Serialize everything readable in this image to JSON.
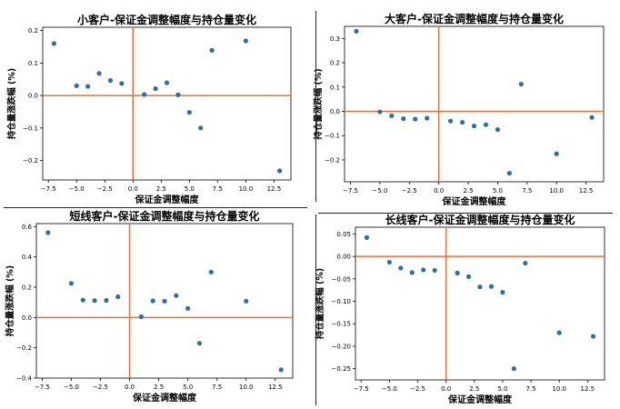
{
  "colors": {
    "point": "#2e6ea0",
    "refline": "#e0743a",
    "axis": "#000000",
    "divider": "#222222"
  },
  "chart_data": [
    {
      "type": "scatter",
      "title": "小客户-保证金调整幅度与持仓量变化",
      "xlabel": "保证金调整幅度",
      "ylabel": "持仓量涨跌幅 (%)",
      "xlim": [
        -8.0,
        14.0
      ],
      "ylim": [
        -0.26,
        0.21
      ],
      "xticks": [
        -7.5,
        -5.0,
        -2.5,
        0.0,
        2.5,
        5.0,
        7.5,
        10.0,
        12.5
      ],
      "xtick_labels": [
        "−7.5",
        "−5.0",
        "−2.5",
        "0.0",
        "2.5",
        "5.0",
        "7.5",
        "10.0",
        "12.5"
      ],
      "yticks": [
        -0.2,
        -0.1,
        0.0,
        0.1,
        0.2
      ],
      "ytick_labels": [
        "−0.2",
        "−0.1",
        "0.0",
        "0.1",
        "0.2"
      ],
      "reference_lines": {
        "x": 0,
        "y": 0
      },
      "grid": false,
      "points": [
        {
          "x": -7.0,
          "y": 0.16
        },
        {
          "x": -5.0,
          "y": 0.03
        },
        {
          "x": -4.0,
          "y": 0.028
        },
        {
          "x": -3.0,
          "y": 0.068
        },
        {
          "x": -2.0,
          "y": 0.046
        },
        {
          "x": -1.0,
          "y": 0.037
        },
        {
          "x": 1.0,
          "y": 0.003
        },
        {
          "x": 2.0,
          "y": 0.021
        },
        {
          "x": 3.0,
          "y": 0.039
        },
        {
          "x": 4.0,
          "y": 0.002
        },
        {
          "x": 5.0,
          "y": -0.052
        },
        {
          "x": 6.0,
          "y": -0.1
        },
        {
          "x": 7.0,
          "y": 0.139
        },
        {
          "x": 10.0,
          "y": 0.168
        },
        {
          "x": 13.0,
          "y": -0.232
        }
      ]
    },
    {
      "type": "scatter",
      "title": "大客户-保证金调整幅度与持仓量变化",
      "xlabel": "保证金调整幅度",
      "ylabel": "持仓量涨跌幅 (%)",
      "xlim": [
        -8.0,
        14.0
      ],
      "ylim": [
        -0.29,
        0.35
      ],
      "xticks": [
        -7.5,
        -5.0,
        -2.5,
        0.0,
        2.5,
        5.0,
        7.5,
        10.0,
        12.5
      ],
      "xtick_labels": [
        "−7.5",
        "−5.0",
        "−2.5",
        "0.0",
        "2.5",
        "5.0",
        "7.5",
        "10.0",
        "12.5"
      ],
      "yticks": [
        -0.2,
        -0.1,
        0.0,
        0.1,
        0.2,
        0.3
      ],
      "ytick_labels": [
        "−0.2",
        "−0.1",
        "0.0",
        "0.1",
        "0.2",
        "0.3"
      ],
      "reference_lines": {
        "x": 0,
        "y": 0
      },
      "grid": false,
      "points": [
        {
          "x": -7.0,
          "y": 0.33
        },
        {
          "x": -5.0,
          "y": -0.002
        },
        {
          "x": -4.0,
          "y": -0.018
        },
        {
          "x": -3.0,
          "y": -0.03
        },
        {
          "x": -2.0,
          "y": -0.032
        },
        {
          "x": -1.0,
          "y": -0.028
        },
        {
          "x": 1.0,
          "y": -0.04
        },
        {
          "x": 2.0,
          "y": -0.045
        },
        {
          "x": 3.0,
          "y": -0.06
        },
        {
          "x": 4.0,
          "y": -0.055
        },
        {
          "x": 5.0,
          "y": -0.075
        },
        {
          "x": 6.0,
          "y": -0.255
        },
        {
          "x": 7.0,
          "y": 0.112
        },
        {
          "x": 10.0,
          "y": -0.175
        },
        {
          "x": 13.0,
          "y": -0.025
        }
      ]
    },
    {
      "type": "scatter",
      "title": "短线客户-保证金调整幅度与持仓量变化",
      "xlabel": "保证金调整幅度",
      "ylabel": "持仓量涨跌幅 (%)",
      "xlim": [
        -8.0,
        14.0
      ],
      "ylim": [
        -0.4,
        0.62
      ],
      "xticks": [
        -7.5,
        -5.0,
        -2.5,
        0.0,
        2.5,
        5.0,
        7.5,
        10.0,
        12.5
      ],
      "xtick_labels": [
        "−7.5",
        "−5.0",
        "−2.5",
        "0.0",
        "2.5",
        "5.0",
        "7.5",
        "10.0",
        "12.5"
      ],
      "yticks": [
        -0.4,
        -0.2,
        0.0,
        0.2,
        0.4,
        0.6
      ],
      "ytick_labels": [
        "−0.4",
        "−0.2",
        "0.0",
        "0.2",
        "0.4",
        "0.6"
      ],
      "reference_lines": {
        "x": 0,
        "y": 0
      },
      "grid": false,
      "points": [
        {
          "x": -7.0,
          "y": 0.56
        },
        {
          "x": -5.0,
          "y": 0.225
        },
        {
          "x": -4.0,
          "y": 0.115
        },
        {
          "x": -3.0,
          "y": 0.112
        },
        {
          "x": -2.0,
          "y": 0.113
        },
        {
          "x": -1.0,
          "y": 0.137
        },
        {
          "x": 1.0,
          "y": 0.005
        },
        {
          "x": 2.0,
          "y": 0.11
        },
        {
          "x": 3.0,
          "y": 0.108
        },
        {
          "x": 4.0,
          "y": 0.145
        },
        {
          "x": 5.0,
          "y": 0.06
        },
        {
          "x": 6.0,
          "y": -0.17
        },
        {
          "x": 7.0,
          "y": 0.3
        },
        {
          "x": 10.0,
          "y": 0.108
        },
        {
          "x": 13.0,
          "y": -0.345
        }
      ]
    },
    {
      "type": "scatter",
      "title": "长线客户-保证金调整幅度与持仓量变化",
      "xlabel": "保证金调整幅度",
      "ylabel": "持仓量涨跌幅 (%)",
      "xlim": [
        -8.0,
        14.0
      ],
      "ylim": [
        -0.275,
        0.065
      ],
      "xticks": [
        -7.5,
        -5.0,
        -2.5,
        0.0,
        2.5,
        5.0,
        7.5,
        10.0,
        12.5
      ],
      "xtick_labels": [
        "−7.5",
        "−5.0",
        "−2.5",
        "0.0",
        "2.5",
        "5.0",
        "7.5",
        "10.0",
        "12.5"
      ],
      "yticks": [
        -0.25,
        -0.2,
        -0.15,
        -0.1,
        -0.05,
        0.0,
        0.05
      ],
      "ytick_labels": [
        "−0.25",
        "−0.20",
        "−0.15",
        "−0.10",
        "−0.05",
        "0.00",
        "0.05"
      ],
      "reference_lines": {
        "x": 0,
        "y": 0
      },
      "grid": false,
      "points": [
        {
          "x": -7.0,
          "y": 0.042
        },
        {
          "x": -5.0,
          "y": -0.013
        },
        {
          "x": -4.0,
          "y": -0.026
        },
        {
          "x": -3.0,
          "y": -0.036
        },
        {
          "x": -2.0,
          "y": -0.03
        },
        {
          "x": -1.0,
          "y": -0.031
        },
        {
          "x": 1.0,
          "y": -0.037
        },
        {
          "x": 2.0,
          "y": -0.045
        },
        {
          "x": 3.0,
          "y": -0.068
        },
        {
          "x": 4.0,
          "y": -0.067
        },
        {
          "x": 5.0,
          "y": -0.08
        },
        {
          "x": 6.0,
          "y": -0.25
        },
        {
          "x": 7.0,
          "y": -0.015
        },
        {
          "x": 10.0,
          "y": -0.17
        },
        {
          "x": 13.0,
          "y": -0.178
        }
      ]
    }
  ]
}
